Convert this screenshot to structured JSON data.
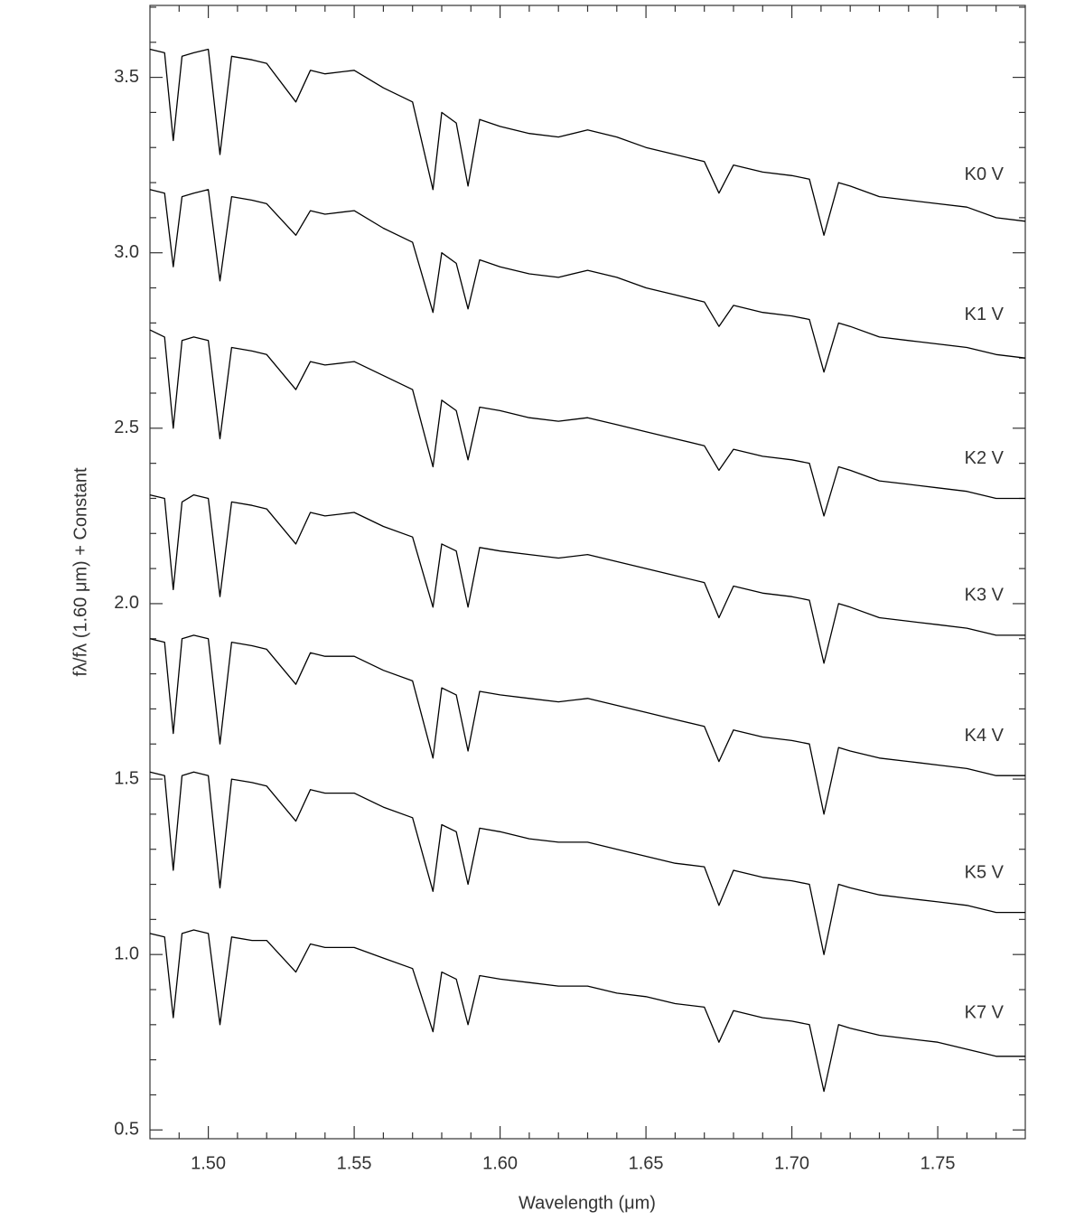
{
  "chart_data": {
    "type": "line",
    "xlabel": "Wavelength (μm)",
    "ylabel": "fλ/fλ (1.60 μm) + Constant",
    "x": [
      1.48,
      1.485,
      1.488,
      1.491,
      1.495,
      1.5,
      1.504,
      1.508,
      1.515,
      1.52,
      1.53,
      1.535,
      1.54,
      1.55,
      1.56,
      1.57,
      1.577,
      1.58,
      1.585,
      1.589,
      1.593,
      1.6,
      1.61,
      1.62,
      1.63,
      1.64,
      1.65,
      1.66,
      1.67,
      1.675,
      1.68,
      1.69,
      1.7,
      1.706,
      1.711,
      1.716,
      1.72,
      1.73,
      1.74,
      1.75,
      1.76,
      1.77,
      1.78
    ],
    "series": [
      {
        "name": "K0 V",
        "color": "#000000",
        "values": [
          3.58,
          3.57,
          3.32,
          3.56,
          3.57,
          3.58,
          3.28,
          3.56,
          3.55,
          3.54,
          3.43,
          3.52,
          3.51,
          3.52,
          3.47,
          3.43,
          3.18,
          3.4,
          3.37,
          3.19,
          3.38,
          3.36,
          3.34,
          3.33,
          3.35,
          3.33,
          3.3,
          3.28,
          3.26,
          3.17,
          3.25,
          3.23,
          3.22,
          3.21,
          3.05,
          3.2,
          3.19,
          3.16,
          3.15,
          3.14,
          3.13,
          3.1,
          3.09
        ]
      },
      {
        "name": "K1 V",
        "color": "#000000",
        "values": [
          3.18,
          3.17,
          2.96,
          3.16,
          3.17,
          3.18,
          2.92,
          3.16,
          3.15,
          3.14,
          3.05,
          3.12,
          3.11,
          3.12,
          3.07,
          3.03,
          2.83,
          3.0,
          2.97,
          2.84,
          2.98,
          2.96,
          2.94,
          2.93,
          2.95,
          2.93,
          2.9,
          2.88,
          2.86,
          2.79,
          2.85,
          2.83,
          2.82,
          2.81,
          2.66,
          2.8,
          2.79,
          2.76,
          2.75,
          2.74,
          2.73,
          2.71,
          2.7
        ]
      },
      {
        "name": "K2 V",
        "color": "#000000",
        "values": [
          2.78,
          2.76,
          2.5,
          2.75,
          2.76,
          2.75,
          2.47,
          2.73,
          2.72,
          2.71,
          2.61,
          2.69,
          2.68,
          2.69,
          2.65,
          2.61,
          2.39,
          2.58,
          2.55,
          2.41,
          2.56,
          2.55,
          2.53,
          2.52,
          2.53,
          2.51,
          2.49,
          2.47,
          2.45,
          2.38,
          2.44,
          2.42,
          2.41,
          2.4,
          2.25,
          2.39,
          2.38,
          2.35,
          2.34,
          2.33,
          2.32,
          2.3,
          2.3
        ]
      },
      {
        "name": "K3 V",
        "color": "#000000",
        "values": [
          2.31,
          2.3,
          2.04,
          2.29,
          2.31,
          2.3,
          2.02,
          2.29,
          2.28,
          2.27,
          2.17,
          2.26,
          2.25,
          2.26,
          2.22,
          2.19,
          1.99,
          2.17,
          2.15,
          1.99,
          2.16,
          2.15,
          2.14,
          2.13,
          2.14,
          2.12,
          2.1,
          2.08,
          2.06,
          1.96,
          2.05,
          2.03,
          2.02,
          2.01,
          1.83,
          2.0,
          1.99,
          1.96,
          1.95,
          1.94,
          1.93,
          1.91,
          1.91
        ]
      },
      {
        "name": "K4 V",
        "color": "#000000",
        "values": [
          1.9,
          1.89,
          1.63,
          1.9,
          1.91,
          1.9,
          1.6,
          1.89,
          1.88,
          1.87,
          1.77,
          1.86,
          1.85,
          1.85,
          1.81,
          1.78,
          1.56,
          1.76,
          1.74,
          1.58,
          1.75,
          1.74,
          1.73,
          1.72,
          1.73,
          1.71,
          1.69,
          1.67,
          1.65,
          1.55,
          1.64,
          1.62,
          1.61,
          1.6,
          1.4,
          1.59,
          1.58,
          1.56,
          1.55,
          1.54,
          1.53,
          1.51,
          1.51
        ]
      },
      {
        "name": "K5 V",
        "color": "#000000",
        "values": [
          1.52,
          1.51,
          1.24,
          1.51,
          1.52,
          1.51,
          1.19,
          1.5,
          1.49,
          1.48,
          1.38,
          1.47,
          1.46,
          1.46,
          1.42,
          1.39,
          1.18,
          1.37,
          1.35,
          1.2,
          1.36,
          1.35,
          1.33,
          1.32,
          1.32,
          1.3,
          1.28,
          1.26,
          1.25,
          1.14,
          1.24,
          1.22,
          1.21,
          1.2,
          1.0,
          1.2,
          1.19,
          1.17,
          1.16,
          1.15,
          1.14,
          1.12,
          1.12
        ]
      },
      {
        "name": "K7 V",
        "color": "#000000",
        "values": [
          1.06,
          1.05,
          0.82,
          1.06,
          1.07,
          1.06,
          0.8,
          1.05,
          1.04,
          1.04,
          0.95,
          1.03,
          1.02,
          1.02,
          0.99,
          0.96,
          0.78,
          0.95,
          0.93,
          0.8,
          0.94,
          0.93,
          0.92,
          0.91,
          0.91,
          0.89,
          0.88,
          0.86,
          0.85,
          0.75,
          0.84,
          0.82,
          0.81,
          0.8,
          0.61,
          0.8,
          0.79,
          0.77,
          0.76,
          0.75,
          0.73,
          0.71,
          0.71
        ]
      }
    ],
    "xlim": [
      1.48,
      1.78
    ],
    "ylim": [
      0.475,
      3.705
    ],
    "xticks": [
      {
        "value": 1.5,
        "label": "1.50"
      },
      {
        "value": 1.55,
        "label": "1.55"
      },
      {
        "value": 1.6,
        "label": "1.60"
      },
      {
        "value": 1.65,
        "label": "1.65"
      },
      {
        "value": 1.7,
        "label": "1.70"
      },
      {
        "value": 1.75,
        "label": "1.75"
      }
    ],
    "yticks": [
      0.5,
      {
        "value": 1,
        "label": "1.0"
      },
      1.5,
      {
        "value": 2,
        "label": "2.0"
      },
      2.5,
      {
        "value": 3,
        "label": "3.0"
      },
      3.5
    ],
    "xticks_minor": [
      1.49,
      1.51,
      1.52,
      1.53,
      1.54,
      1.56,
      1.57,
      1.58,
      1.59,
      1.61,
      1.62,
      1.63,
      1.64,
      1.66,
      1.67,
      1.68,
      1.69,
      1.71,
      1.72,
      1.73,
      1.74,
      1.76,
      1.77
    ],
    "yticks_minor": [
      0.6,
      0.7,
      0.8,
      0.9,
      1.1,
      1.2,
      1.3,
      1.4,
      1.6,
      1.7,
      1.8,
      1.9,
      2.1,
      2.2,
      2.3,
      2.4,
      2.6,
      2.7,
      2.8,
      2.9,
      3.1,
      3.2,
      3.3,
      3.4,
      3.6,
      3.7
    ],
    "grid": false
  }
}
